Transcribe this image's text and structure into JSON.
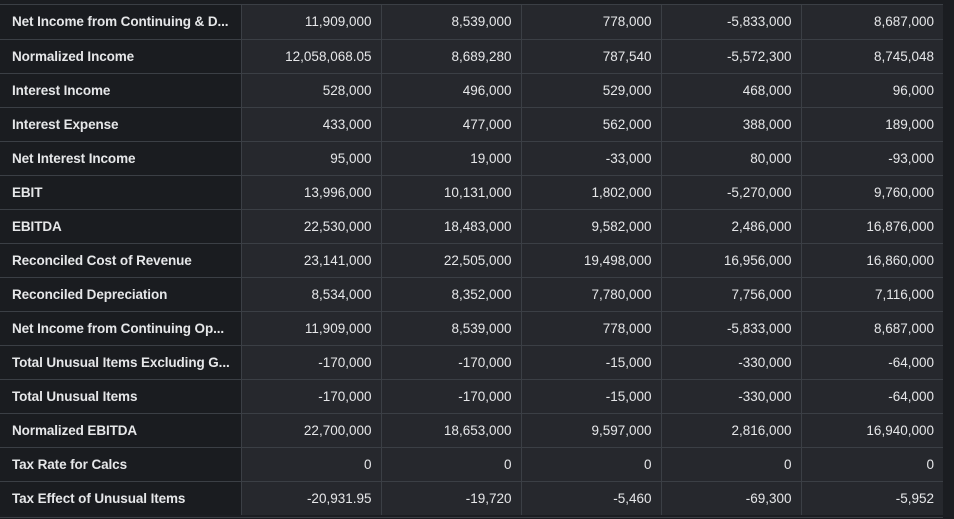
{
  "table": {
    "rows": [
      {
        "label": "Net Income from Continuing & D...",
        "values": [
          "11,909,000",
          "8,539,000",
          "778,000",
          "-5,833,000",
          "8,687,000"
        ]
      },
      {
        "label": "Normalized Income",
        "values": [
          "12,058,068.05",
          "8,689,280",
          "787,540",
          "-5,572,300",
          "8,745,048"
        ]
      },
      {
        "label": "Interest Income",
        "values": [
          "528,000",
          "496,000",
          "529,000",
          "468,000",
          "96,000"
        ]
      },
      {
        "label": "Interest Expense",
        "values": [
          "433,000",
          "477,000",
          "562,000",
          "388,000",
          "189,000"
        ]
      },
      {
        "label": "Net Interest Income",
        "values": [
          "95,000",
          "19,000",
          "-33,000",
          "80,000",
          "-93,000"
        ]
      },
      {
        "label": "EBIT",
        "values": [
          "13,996,000",
          "10,131,000",
          "1,802,000",
          "-5,270,000",
          "9,760,000"
        ]
      },
      {
        "label": "EBITDA",
        "values": [
          "22,530,000",
          "18,483,000",
          "9,582,000",
          "2,486,000",
          "16,876,000"
        ]
      },
      {
        "label": "Reconciled Cost of Revenue",
        "values": [
          "23,141,000",
          "22,505,000",
          "19,498,000",
          "16,956,000",
          "16,860,000"
        ]
      },
      {
        "label": "Reconciled Depreciation",
        "values": [
          "8,534,000",
          "8,352,000",
          "7,780,000",
          "7,756,000",
          "7,116,000"
        ]
      },
      {
        "label": "Net Income from Continuing Op...",
        "values": [
          "11,909,000",
          "8,539,000",
          "778,000",
          "-5,833,000",
          "8,687,000"
        ]
      },
      {
        "label": "Total Unusual Items Excluding G...",
        "values": [
          "-170,000",
          "-170,000",
          "-15,000",
          "-330,000",
          "-64,000"
        ]
      },
      {
        "label": "Total Unusual Items",
        "values": [
          "-170,000",
          "-170,000",
          "-15,000",
          "-330,000",
          "-64,000"
        ]
      },
      {
        "label": "Normalized EBITDA",
        "values": [
          "22,700,000",
          "18,653,000",
          "9,597,000",
          "2,816,000",
          "16,940,000"
        ]
      },
      {
        "label": "Tax Rate for Calcs",
        "values": [
          "0",
          "0",
          "0",
          "0",
          "0"
        ]
      },
      {
        "label": "Tax Effect of Unusual Items",
        "values": [
          "-20,931.95",
          "-19,720",
          "-5,460",
          "-69,300",
          "-5,952"
        ]
      }
    ]
  }
}
